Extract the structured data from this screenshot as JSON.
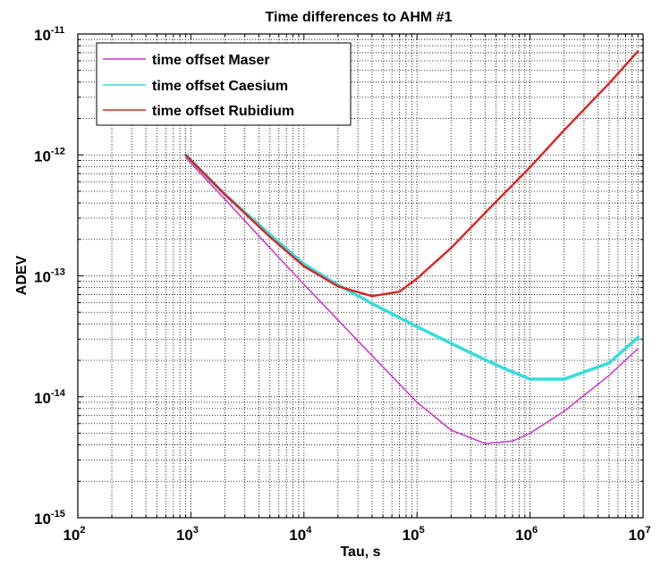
{
  "chart_data": {
    "type": "line",
    "title": "Time differences to AHM #1",
    "xlabel": "Tau, s",
    "ylabel": "ADEV",
    "x_scale": "log",
    "y_scale": "log",
    "xlim": [
      100,
      10000000
    ],
    "ylim": [
      1e-15,
      1e-11
    ],
    "grid": true,
    "legend_position": "top-left",
    "x_ticks": [
      {
        "base": "10",
        "exp": "2"
      },
      {
        "base": "10",
        "exp": "3"
      },
      {
        "base": "10",
        "exp": "4"
      },
      {
        "base": "10",
        "exp": "5"
      },
      {
        "base": "10",
        "exp": "6"
      },
      {
        "base": "10",
        "exp": "7"
      }
    ],
    "y_ticks": [
      {
        "base": "10",
        "exp": "-15"
      },
      {
        "base": "10",
        "exp": "-14"
      },
      {
        "base": "10",
        "exp": "-13"
      },
      {
        "base": "10",
        "exp": "-12"
      },
      {
        "base": "10",
        "exp": "-11"
      }
    ],
    "series": [
      {
        "name": "time offset Maser",
        "color": "#cc33cc",
        "x": [
          900,
          2000,
          5000,
          10000,
          30000,
          100000,
          200000,
          400000,
          700000,
          1000000,
          2000000,
          5000000,
          9000000
        ],
        "y": [
          9.5e-13,
          4.3e-13,
          1.7e-13,
          8.5e-14,
          2.9e-14,
          9e-15,
          5.3e-15,
          4.1e-15,
          4.3e-15,
          5e-15,
          7.6e-15,
          1.5e-14,
          2.5e-14
        ]
      },
      {
        "name": "time offset Caesium",
        "color": "#33dddd",
        "x": [
          900,
          2000,
          5000,
          10000,
          20000,
          40000,
          100000,
          300000,
          600000,
          1000000,
          2000000,
          5000000,
          9000000
        ],
        "y": [
          1e-12,
          4.7e-13,
          2.2e-13,
          1.25e-13,
          8.4e-14,
          5.9e-14,
          3.8e-14,
          2.3e-14,
          1.7e-14,
          1.4e-14,
          1.4e-14,
          1.9e-14,
          3.1e-14
        ]
      },
      {
        "name": "time offset Rubidium",
        "color": "#dd2222",
        "x": [
          900,
          2000,
          5000,
          10000,
          20000,
          40000,
          70000,
          100000,
          200000,
          500000,
          1000000,
          2000000,
          5000000,
          9000000
        ],
        "y": [
          1e-12,
          4.7e-13,
          2.1e-13,
          1.2e-13,
          8.2e-14,
          6.8e-14,
          7.4e-14,
          9.5e-14,
          1.7e-13,
          4.1e-13,
          7.9e-13,
          1.6e-12,
          3.9e-12,
          7.2e-12
        ]
      }
    ]
  }
}
